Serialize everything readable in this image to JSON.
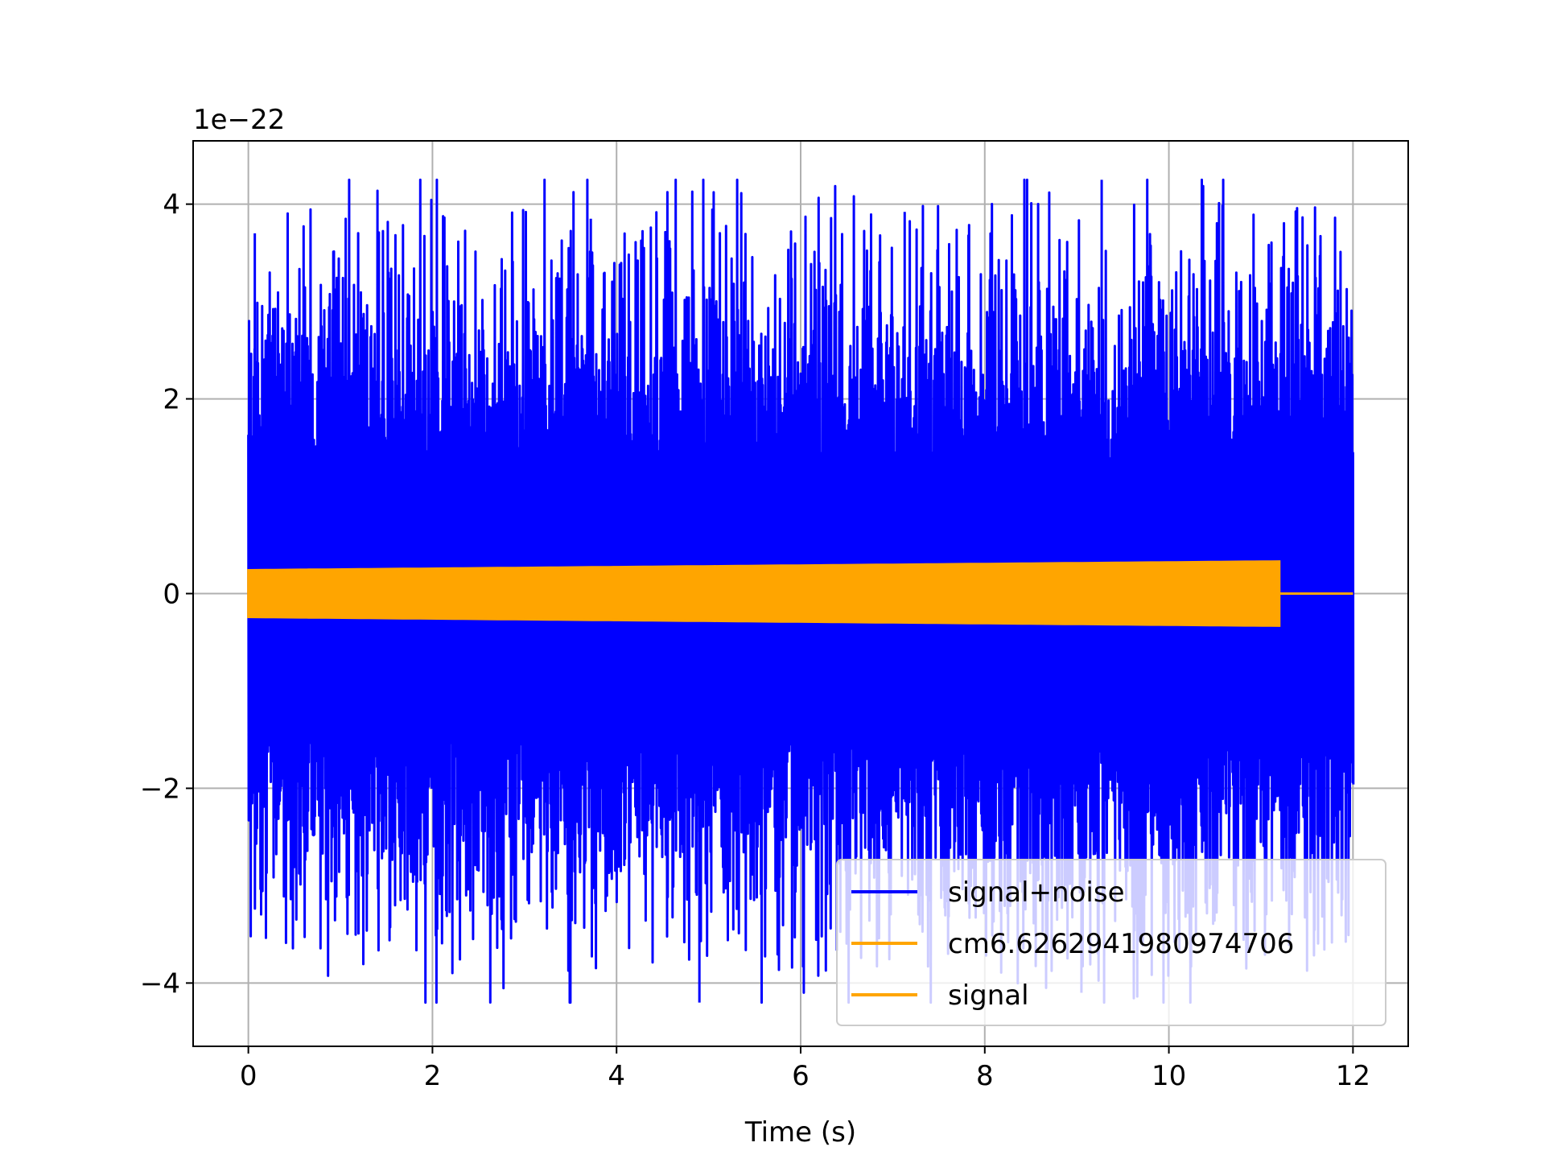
{
  "chart_data": {
    "type": "line",
    "title": "",
    "xlabel": "Time (s)",
    "ylabel": "",
    "y_offset_label": "1e−22",
    "y_scale": 1e-22,
    "xlim": [
      -0.6,
      12.6
    ],
    "ylim": [
      -4.65e-22,
      4.65e-22
    ],
    "x_ticks": [
      0,
      2,
      4,
      6,
      8,
      10,
      12
    ],
    "x_tick_labels": [
      "0",
      "2",
      "4",
      "6",
      "8",
      "10",
      "12"
    ],
    "y_ticks": [
      -4e-22,
      -2e-22,
      0,
      2e-22,
      4e-22
    ],
    "y_tick_labels": [
      "−4",
      "−2",
      "0",
      "2",
      "4"
    ],
    "grid": true,
    "legend_position": "lower-right",
    "series": [
      {
        "name": "signal+noise",
        "color": "#0000ff",
        "x_range": [
          0,
          12
        ],
        "typical_amplitude": 2e-22,
        "max": 4.25e-22,
        "min": -4.2e-22
      },
      {
        "name": "cm6.6262941980974706",
        "color": "#ffa500",
        "x_range": [
          0,
          11.2
        ],
        "envelope_start": 2.4e-23,
        "envelope_end": 3.3e-23
      },
      {
        "name": "signal",
        "color": "#ffa500",
        "x": [
          0,
          11.2,
          11.2,
          12
        ],
        "y": [
          0,
          0,
          0,
          0
        ]
      }
    ]
  }
}
